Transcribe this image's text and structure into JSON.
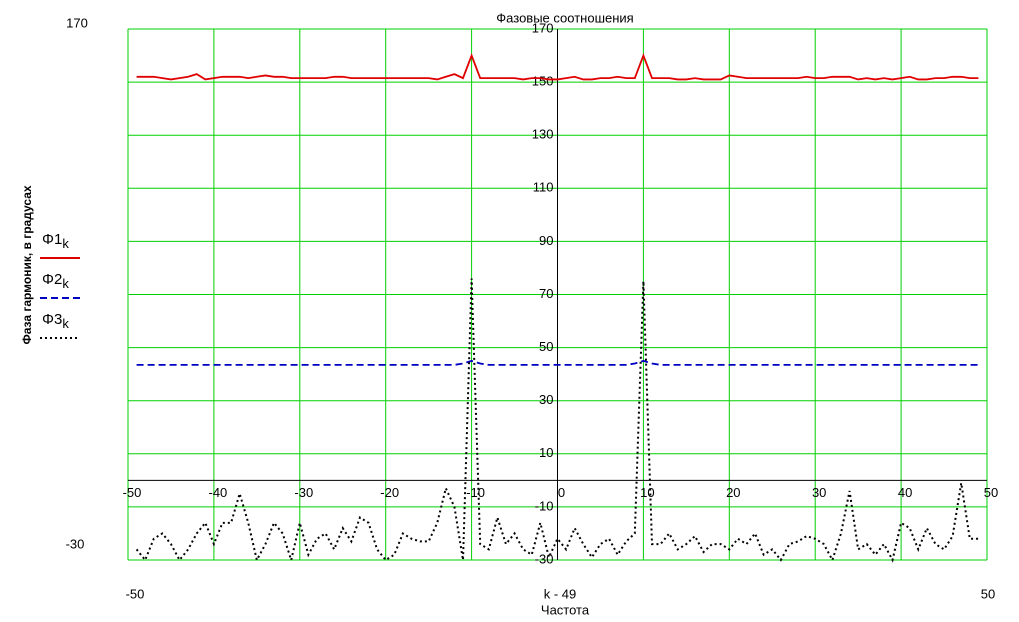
{
  "chart_data": {
    "type": "line",
    "title": "Фазовые соотношения",
    "xlabel": "Частота",
    "x_expr": "k - 49",
    "ylabel": "Фаза гармоник, в градусах",
    "x": [
      -49,
      -48,
      -47,
      -46,
      -45,
      -44,
      -43,
      -42,
      -41,
      -40,
      -39,
      -38,
      -37,
      -36,
      -35,
      -34,
      -33,
      -32,
      -31,
      -30,
      -29,
      -28,
      -27,
      -26,
      -25,
      -24,
      -23,
      -22,
      -21,
      -20,
      -19,
      -18,
      -17,
      -16,
      -15,
      -14,
      -13,
      -12,
      -11,
      -10,
      -9,
      -8,
      -7,
      -6,
      -5,
      -4,
      -3,
      -2,
      -1,
      0,
      1,
      2,
      3,
      4,
      5,
      6,
      7,
      8,
      9,
      10,
      11,
      12,
      13,
      14,
      15,
      16,
      17,
      18,
      19,
      20,
      21,
      22,
      23,
      24,
      25,
      26,
      27,
      28,
      29,
      30,
      31,
      32,
      33,
      34,
      35,
      36,
      37,
      38,
      39,
      40,
      41,
      42,
      43,
      44,
      45,
      46,
      47,
      48,
      49
    ],
    "series": [
      {
        "name": "Φ1k",
        "color": "#e00000",
        "style": "solid",
        "values": [
          152,
          152,
          152,
          151.5,
          151,
          151.5,
          152,
          153,
          151,
          151.5,
          152,
          152,
          152,
          151.5,
          152,
          152.5,
          152,
          152,
          151.5,
          151.5,
          151.5,
          151.5,
          151.5,
          152,
          152,
          151.5,
          151.5,
          151.5,
          151.5,
          151.5,
          151.5,
          151.5,
          151.5,
          151.5,
          151.5,
          151,
          152,
          153,
          151.5,
          160,
          151.5,
          151.5,
          151.5,
          151.5,
          151.5,
          151,
          151.5,
          151.5,
          151,
          151,
          151.5,
          152,
          151,
          151,
          151.5,
          151.5,
          152,
          151.5,
          151.5,
          160,
          151.5,
          151.5,
          151.5,
          151,
          151,
          151.5,
          151,
          151,
          151,
          152.5,
          152,
          151.5,
          151.5,
          151.5,
          151.5,
          151.5,
          151.5,
          151.5,
          152,
          151.5,
          151.5,
          152,
          152,
          152,
          151,
          151.5,
          151,
          151.5,
          151,
          151.5,
          152,
          151,
          151,
          151.5,
          151.5,
          152,
          152,
          151.5,
          151.5
        ]
      },
      {
        "name": "Φ2k",
        "color": "#0000c0",
        "style": "dashed",
        "values": [
          43.5,
          43.5,
          43.5,
          43.5,
          43.5,
          43.5,
          43.5,
          43.5,
          43.5,
          43.5,
          43.5,
          43.5,
          43.5,
          43.5,
          43.5,
          43.5,
          43.5,
          43.5,
          43.5,
          43.5,
          43.5,
          43.5,
          43.5,
          43.5,
          43.5,
          43.5,
          43.5,
          43.5,
          43.5,
          43.5,
          43.5,
          43.5,
          43.5,
          43.5,
          43.5,
          43.5,
          43.5,
          43.5,
          44,
          45,
          44,
          43.5,
          43.5,
          43.5,
          43.5,
          43.5,
          43.5,
          43.5,
          43.5,
          43.5,
          43.5,
          43.5,
          43.5,
          43.5,
          43.5,
          43.5,
          43.5,
          43.5,
          44,
          45,
          44,
          43.5,
          43.5,
          43.5,
          43.5,
          43.5,
          43.5,
          43.5,
          43.5,
          43.5,
          43.5,
          43.5,
          43.5,
          43.5,
          43.5,
          43.5,
          43.5,
          43.5,
          43.5,
          43.5,
          43.5,
          43.5,
          43.5,
          43.5,
          43.5,
          43.5,
          43.5,
          43.5,
          43.5,
          43.5,
          43.5,
          43.5,
          43.5,
          43.5,
          43.5,
          43.5,
          43.5,
          43.5,
          43.5
        ]
      },
      {
        "name": "Φ3k",
        "color": "#000000",
        "style": "dotted",
        "values": [
          -26,
          -30,
          -22,
          -20,
          -24,
          -30,
          -26,
          -20,
          -16,
          -24,
          -16,
          -16,
          -5,
          -16,
          -30,
          -24,
          -16,
          -20,
          -30,
          -16,
          -28,
          -22,
          -20,
          -26,
          -18,
          -23,
          -14,
          -16,
          -26,
          -30,
          -28,
          -20,
          -22,
          -23,
          -23,
          -16,
          -3,
          -10,
          -30,
          76,
          -24,
          -26,
          -14,
          -24,
          -20,
          -26,
          -28,
          -16,
          -29,
          -22,
          -26,
          -18,
          -24,
          -29,
          -24,
          -22,
          -28,
          -23,
          -20,
          75,
          -24,
          -24,
          -20,
          -26,
          -24,
          -21,
          -27,
          -24,
          -24,
          -26,
          -22,
          -24,
          -20,
          -28,
          -26,
          -30,
          -24,
          -23,
          -21,
          -22,
          -24,
          -30,
          -20,
          -4,
          -26,
          -24,
          -28,
          -24,
          -30,
          -16,
          -18,
          -26,
          -18,
          -24,
          -26,
          -21,
          -1,
          -22,
          -22
        ]
      }
    ],
    "xlim": [
      -50,
      50
    ],
    "ylim": [
      -30,
      170
    ],
    "xticks": [
      -50,
      -40,
      -30,
      -20,
      -10,
      0,
      10,
      20,
      30,
      40,
      50
    ],
    "yticks": [
      -30,
      -10,
      10,
      30,
      50,
      70,
      90,
      110,
      130,
      150,
      170
    ],
    "grid": true,
    "grid_color": "#00d000"
  }
}
